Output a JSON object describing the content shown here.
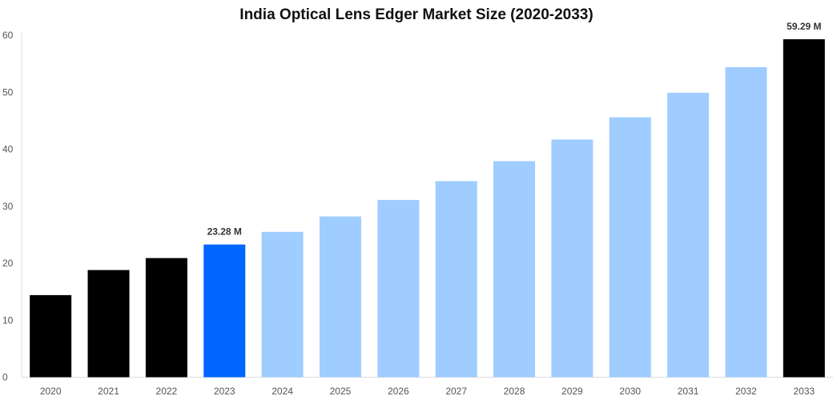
{
  "chart_data": {
    "type": "bar",
    "title": "India Optical Lens Edger Market Size (2020-2033)",
    "xlabel": "",
    "ylabel": "",
    "categories": [
      "2020",
      "2021",
      "2022",
      "2023",
      "2024",
      "2025",
      "2026",
      "2027",
      "2028",
      "2029",
      "2030",
      "2031",
      "2032",
      "2033"
    ],
    "values": [
      14.4,
      18.8,
      20.9,
      23.28,
      25.5,
      28.2,
      31.1,
      34.4,
      37.9,
      41.7,
      45.6,
      49.9,
      54.4,
      59.29
    ],
    "colors": [
      "#000000",
      "#000000",
      "#000000",
      "#0066ff",
      "#a0cdff",
      "#a0cdff",
      "#a0cdff",
      "#a0cdff",
      "#a0cdff",
      "#a0cdff",
      "#a0cdff",
      "#a0cdff",
      "#a0cdff",
      "#000000"
    ],
    "data_labels": {
      "3": "23.28 M",
      "13": "59.29 M"
    },
    "ylim": [
      0,
      60
    ],
    "yticks": [
      0,
      10,
      20,
      30,
      40,
      50,
      60
    ],
    "grid": false,
    "legend": "none"
  }
}
